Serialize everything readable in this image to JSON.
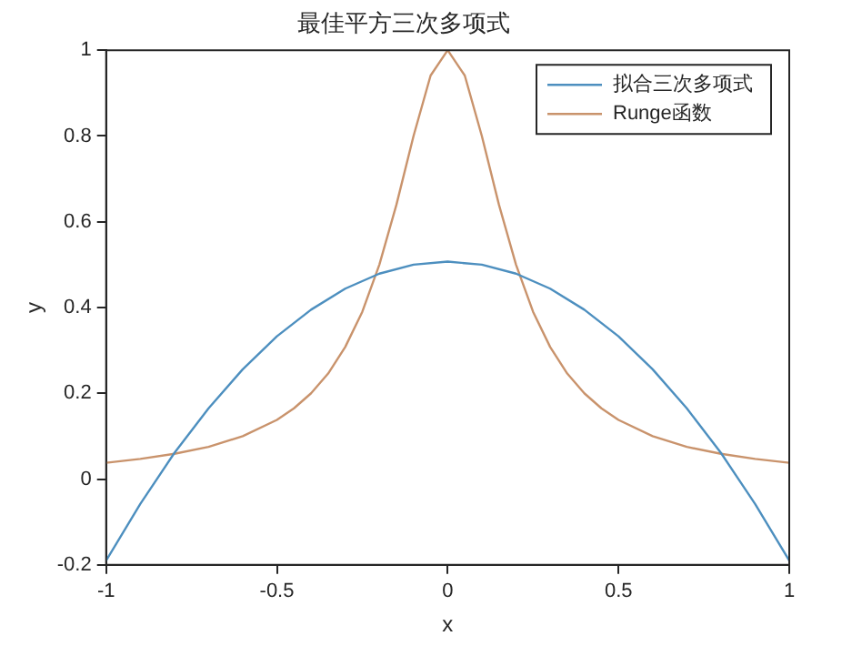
{
  "chart_data": {
    "type": "line",
    "title": "最佳平方三次多项式",
    "xlabel": "x",
    "ylabel": "y",
    "xlim": [
      -1,
      1
    ],
    "xticks": [
      -1,
      -0.5,
      0,
      0.5,
      1
    ],
    "ylim": [
      -0.2,
      1
    ],
    "yticks": [
      -0.2,
      0,
      0.2,
      0.4,
      0.6,
      0.8,
      1
    ],
    "grid": false,
    "legend": "top right",
    "marker": "none",
    "line_style": "solid",
    "series": [
      {
        "name": "拟合三次多项式",
        "color": "#4d8fbf",
        "x": [
          -1,
          -0.9,
          -0.8,
          -0.7,
          -0.6,
          -0.5,
          -0.4,
          -0.3,
          -0.2,
          -0.1,
          0,
          0.1,
          0.2,
          0.3,
          0.4,
          0.5,
          0.6,
          0.7,
          0.8,
          0.9,
          1
        ],
        "values": [
          -0.19,
          -0.058,
          0.061,
          0.165,
          0.256,
          0.333,
          0.395,
          0.444,
          0.479,
          0.5,
          0.507,
          0.5,
          0.479,
          0.444,
          0.395,
          0.333,
          0.256,
          0.165,
          0.061,
          -0.058,
          -0.19
        ]
      },
      {
        "name": "Runge函数",
        "color": "#c9936c",
        "x": [
          -1,
          -0.9,
          -0.8,
          -0.7,
          -0.6,
          -0.5,
          -0.45,
          -0.4,
          -0.35,
          -0.3,
          -0.25,
          -0.2,
          -0.15,
          -0.1,
          -0.05,
          0,
          0.05,
          0.1,
          0.15,
          0.2,
          0.25,
          0.3,
          0.35,
          0.4,
          0.45,
          0.5,
          0.6,
          0.7,
          0.8,
          0.9,
          1
        ],
        "values": [
          0.038,
          0.047,
          0.059,
          0.075,
          0.1,
          0.138,
          0.165,
          0.2,
          0.246,
          0.308,
          0.39,
          0.5,
          0.64,
          0.8,
          0.941,
          1,
          0.941,
          0.8,
          0.64,
          0.5,
          0.39,
          0.308,
          0.246,
          0.2,
          0.165,
          0.138,
          0.1,
          0.075,
          0.059,
          0.047,
          0.038
        ]
      }
    ]
  }
}
